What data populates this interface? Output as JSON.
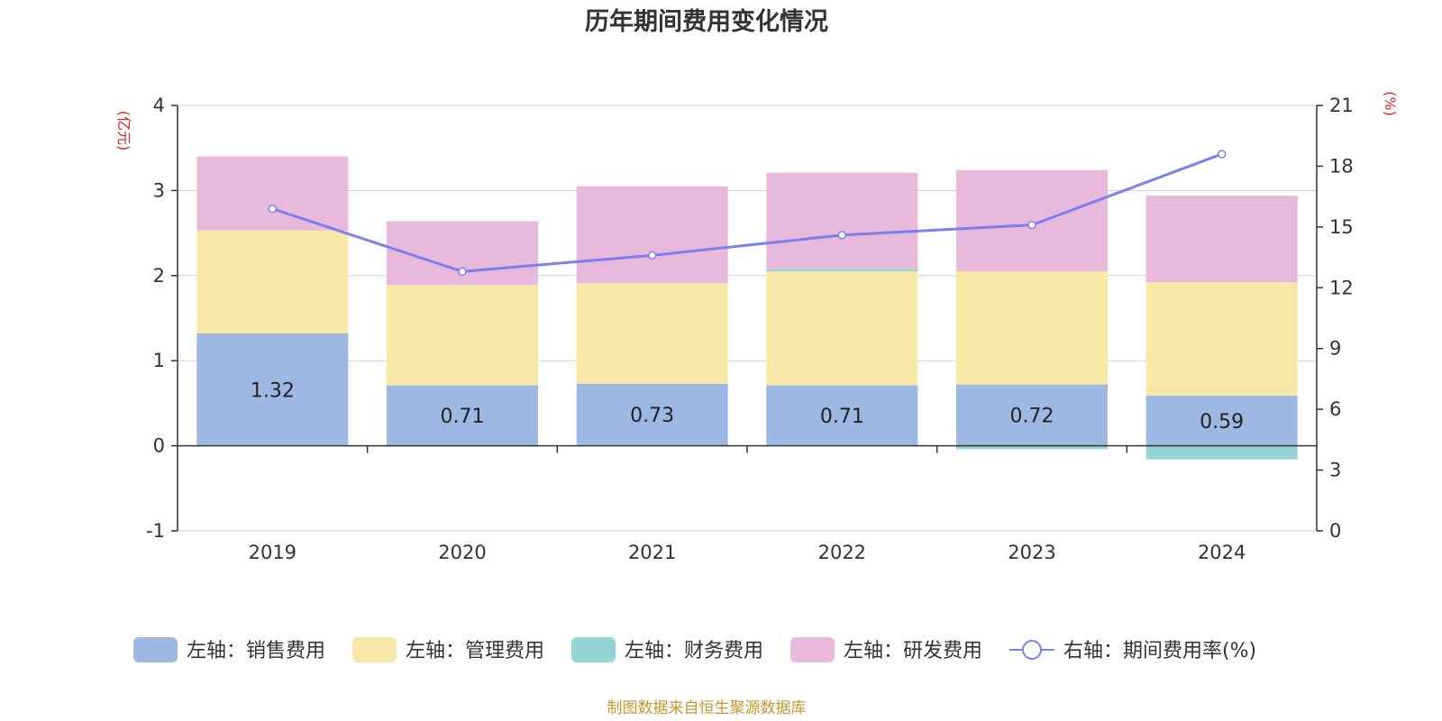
{
  "chart_data": {
    "type": "bar",
    "title": "历年期间费用变化情况",
    "categories": [
      "2019",
      "2020",
      "2021",
      "2022",
      "2023",
      "2024"
    ],
    "left_axis": {
      "unit": "(亿元)",
      "ylim": [
        -1,
        4
      ],
      "ticks": [
        "-1",
        "0",
        "1",
        "2",
        "3",
        "4"
      ]
    },
    "right_axis": {
      "unit": "(%)",
      "ylim": [
        0,
        21
      ],
      "ticks": [
        "0",
        "3",
        "6",
        "9",
        "12",
        "15",
        "18",
        "21"
      ]
    },
    "series": [
      {
        "name": "左轴：销售费用",
        "axis": "left",
        "color": "#9db8e2",
        "values": [
          1.32,
          0.71,
          0.73,
          0.71,
          0.72,
          0.59
        ],
        "labels": [
          "1.32",
          "0.71",
          "0.73",
          "0.71",
          "0.72",
          "0.59"
        ]
      },
      {
        "name": "左轴：管理费用",
        "axis": "left",
        "color": "#f8e8a8",
        "values": [
          1.21,
          1.18,
          1.18,
          1.34,
          1.33,
          1.33
        ]
      },
      {
        "name": "左轴：财务费用",
        "axis": "left",
        "color": "#95d4d4",
        "values": [
          0.0,
          -0.01,
          0.0,
          0.03,
          -0.04,
          -0.16
        ]
      },
      {
        "name": "左轴：研发费用",
        "axis": "left",
        "color": "#e8b9da",
        "values": [
          0.87,
          0.75,
          1.14,
          1.13,
          1.19,
          1.02
        ]
      },
      {
        "name": "右轴：期间费用率(%)",
        "axis": "right",
        "type": "line",
        "color": "#7b7ff0",
        "values": [
          15.9,
          12.8,
          13.6,
          14.6,
          15.1,
          18.6
        ]
      }
    ],
    "source": "制图数据来自恒生聚源数据库"
  }
}
